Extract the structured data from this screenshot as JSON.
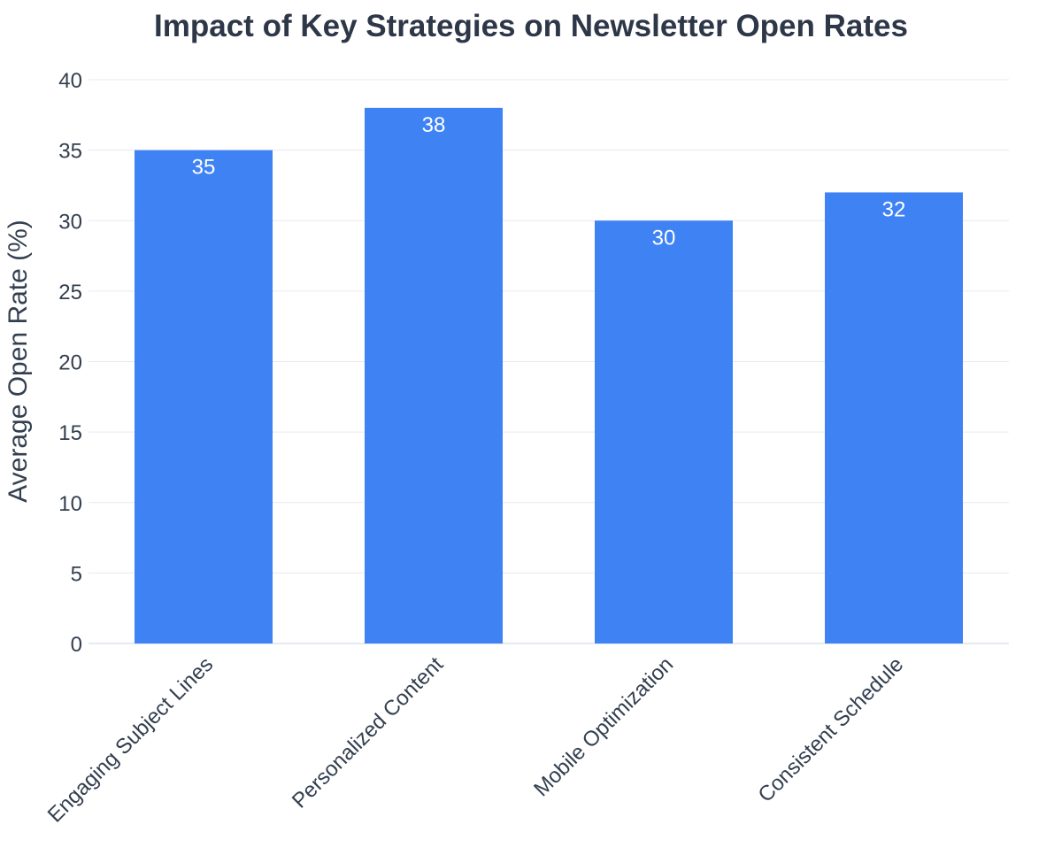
{
  "chart_data": {
    "type": "bar",
    "title": "Impact of Key Strategies on Newsletter Open Rates",
    "xlabel": "",
    "ylabel": "Average Open Rate (%)",
    "categories": [
      "Engaging Subject Lines",
      "Personalized Content",
      "Mobile Optimization",
      "Consistent Schedule"
    ],
    "values": [
      35,
      38,
      30,
      32
    ],
    "ylim": [
      0,
      40
    ],
    "yticks": [
      0,
      5,
      10,
      15,
      20,
      25,
      30,
      35,
      40
    ],
    "grid": true,
    "legend": false,
    "bar_color": "#3e82f4",
    "label_color": "#ffffff",
    "gridline_color": "#e6eaf0"
  }
}
